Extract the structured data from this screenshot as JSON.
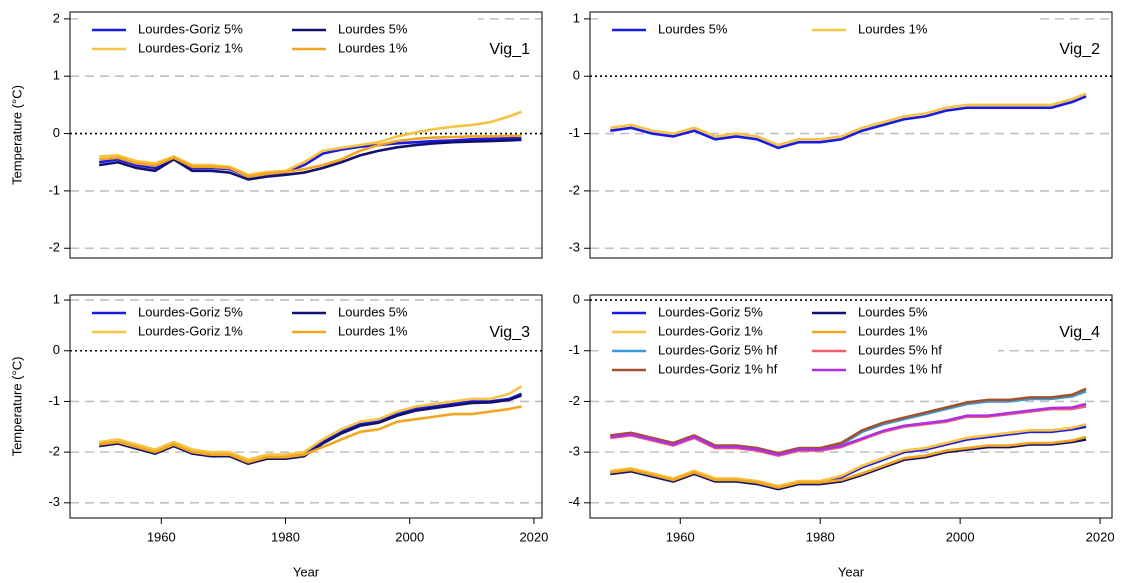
{
  "chart_data": [
    {
      "type": "line",
      "annotation": "Vig_1",
      "ylabel": "Temperature (°C)",
      "x": [
        1950,
        1953,
        1956,
        1959,
        1962,
        1965,
        1968,
        1971,
        1974,
        1977,
        1980,
        1983,
        1986,
        1989,
        1992,
        1995,
        1998,
        2001,
        2004,
        2007,
        2010,
        2013,
        2016,
        2018
      ],
      "xlim": [
        1945.3,
        2021.3
      ],
      "ylim": [
        -2.17,
        2.12
      ],
      "yticks": [
        -2,
        -1,
        0,
        1,
        2
      ],
      "grid": true,
      "hline": 0,
      "legend": "top-left",
      "legend_columns": 2,
      "series": [
        {
          "name": "Lourdes-Goriz 5%",
          "color": "#1a1ae6",
          "values": [
            -0.5,
            -0.45,
            -0.55,
            -0.6,
            -0.42,
            -0.6,
            -0.6,
            -0.62,
            -0.75,
            -0.7,
            -0.68,
            -0.55,
            -0.35,
            -0.28,
            -0.23,
            -0.2,
            -0.17,
            -0.15,
            -0.13,
            -0.12,
            -0.1,
            -0.09,
            -0.08,
            -0.07
          ]
        },
        {
          "name": "Lourdes-Goriz 1%",
          "color": "#f6c445",
          "values": [
            -0.4,
            -0.38,
            -0.48,
            -0.52,
            -0.4,
            -0.55,
            -0.55,
            -0.58,
            -0.72,
            -0.67,
            -0.65,
            -0.5,
            -0.3,
            -0.25,
            -0.2,
            -0.15,
            -0.05,
            0.02,
            0.08,
            0.12,
            0.15,
            0.2,
            0.3,
            0.38
          ]
        },
        {
          "name": "Lourdes 5%",
          "color": "#12126e",
          "values": [
            -0.55,
            -0.5,
            -0.6,
            -0.65,
            -0.45,
            -0.65,
            -0.65,
            -0.68,
            -0.8,
            -0.75,
            -0.72,
            -0.68,
            -0.6,
            -0.5,
            -0.38,
            -0.3,
            -0.24,
            -0.2,
            -0.17,
            -0.15,
            -0.14,
            -0.13,
            -0.12,
            -0.11
          ]
        },
        {
          "name": "Lourdes 1%",
          "color": "#f2a51f",
          "values": [
            -0.45,
            -0.42,
            -0.52,
            -0.56,
            -0.42,
            -0.58,
            -0.58,
            -0.6,
            -0.75,
            -0.7,
            -0.67,
            -0.62,
            -0.55,
            -0.45,
            -0.3,
            -0.2,
            -0.13,
            -0.09,
            -0.07,
            -0.06,
            -0.05,
            -0.05,
            -0.04,
            -0.04
          ]
        }
      ]
    },
    {
      "type": "line",
      "annotation": "Vig_2",
      "x": [
        1950,
        1953,
        1956,
        1959,
        1962,
        1965,
        1968,
        1971,
        1974,
        1977,
        1980,
        1983,
        1986,
        1989,
        1992,
        1995,
        1998,
        2001,
        2004,
        2007,
        2010,
        2013,
        2016,
        2018
      ],
      "xlim": [
        1947.1,
        2021.7
      ],
      "ylim": [
        -3.17,
        1.12
      ],
      "yticks": [
        -3,
        -2,
        -1,
        0,
        1
      ],
      "grid": true,
      "hline": 0,
      "legend": "top-left",
      "legend_columns": 2,
      "series": [
        {
          "name": "Lourdes 5%",
          "color": "#1a1ae6",
          "values": [
            -0.95,
            -0.9,
            -1.0,
            -1.05,
            -0.95,
            -1.1,
            -1.05,
            -1.1,
            -1.25,
            -1.15,
            -1.15,
            -1.1,
            -0.95,
            -0.85,
            -0.75,
            -0.7,
            -0.6,
            -0.55,
            -0.55,
            -0.55,
            -0.55,
            -0.55,
            -0.45,
            -0.35
          ]
        },
        {
          "name": "Lourdes 1%",
          "color": "#f6c445",
          "values": [
            -0.9,
            -0.85,
            -0.95,
            -1.0,
            -0.9,
            -1.05,
            -1.0,
            -1.05,
            -1.2,
            -1.1,
            -1.1,
            -1.05,
            -0.9,
            -0.8,
            -0.7,
            -0.65,
            -0.55,
            -0.5,
            -0.5,
            -0.5,
            -0.5,
            -0.5,
            -0.4,
            -0.3
          ]
        }
      ]
    },
    {
      "type": "line",
      "annotation": "Vig_3",
      "ylabel": "Temperature (°C)",
      "xlabel": "Year",
      "x": [
        1950,
        1953,
        1956,
        1959,
        1962,
        1965,
        1968,
        1971,
        1974,
        1977,
        1980,
        1983,
        1986,
        1989,
        1992,
        1995,
        1998,
        2001,
        2004,
        2007,
        2010,
        2013,
        2016,
        2018
      ],
      "xlim": [
        1945.3,
        2021.3
      ],
      "xticks": [
        1960,
        1980,
        2000,
        2020
      ],
      "ylim": [
        -3.3,
        1.1
      ],
      "yticks": [
        -3,
        -2,
        -1,
        0,
        1
      ],
      "grid": true,
      "hline": 0,
      "legend": "top-left",
      "legend_columns": 2,
      "series": [
        {
          "name": "Lourdes-Goriz 5%",
          "color": "#1a1ae6",
          "values": [
            -1.85,
            -1.8,
            -1.9,
            -2.0,
            -1.85,
            -2.0,
            -2.05,
            -2.05,
            -2.2,
            -2.1,
            -2.1,
            -2.05,
            -1.8,
            -1.6,
            -1.45,
            -1.4,
            -1.25,
            -1.15,
            -1.1,
            -1.05,
            -1.0,
            -1.0,
            -0.95,
            -0.85
          ]
        },
        {
          "name": "Lourdes-Goriz 1%",
          "color": "#f6c445",
          "values": [
            -1.8,
            -1.75,
            -1.85,
            -1.95,
            -1.8,
            -1.95,
            -2.0,
            -2.0,
            -2.15,
            -2.05,
            -2.05,
            -2.0,
            -1.75,
            -1.55,
            -1.4,
            -1.35,
            -1.2,
            -1.1,
            -1.05,
            -1.0,
            -0.95,
            -0.95,
            -0.85,
            -0.7
          ]
        },
        {
          "name": "Lourdes 5%",
          "color": "#12126e",
          "values": [
            -1.88,
            -1.83,
            -1.93,
            -2.03,
            -1.88,
            -2.03,
            -2.08,
            -2.08,
            -2.23,
            -2.13,
            -2.13,
            -2.08,
            -1.83,
            -1.63,
            -1.48,
            -1.42,
            -1.28,
            -1.18,
            -1.13,
            -1.08,
            -1.03,
            -1.02,
            -0.97,
            -0.88
          ]
        },
        {
          "name": "Lourdes 1%",
          "color": "#f2a51f",
          "values": [
            -1.85,
            -1.8,
            -1.9,
            -2.0,
            -1.85,
            -2.0,
            -2.05,
            -2.05,
            -2.2,
            -2.1,
            -2.1,
            -2.05,
            -1.9,
            -1.75,
            -1.6,
            -1.55,
            -1.4,
            -1.35,
            -1.3,
            -1.25,
            -1.25,
            -1.2,
            -1.15,
            -1.1
          ]
        }
      ]
    },
    {
      "type": "line",
      "annotation": "Vig_4",
      "xlabel": "Year",
      "x": [
        1950,
        1953,
        1956,
        1959,
        1962,
        1965,
        1968,
        1971,
        1974,
        1977,
        1980,
        1983,
        1986,
        1989,
        1992,
        1995,
        1998,
        2001,
        2004,
        2007,
        2010,
        2013,
        2016,
        2018
      ],
      "xlim": [
        1947.1,
        2021.7
      ],
      "xticks": [
        1960,
        1980,
        2000,
        2020
      ],
      "ylim": [
        -4.3,
        0.1
      ],
      "yticks": [
        -4,
        -3,
        -2,
        -1,
        0
      ],
      "grid": true,
      "hline": 0,
      "legend": "top-left",
      "legend_columns": 2,
      "series": [
        {
          "name": "Lourdes-Goriz 5%",
          "color": "#1a1ae6",
          "values": [
            -3.4,
            -3.35,
            -3.45,
            -3.55,
            -3.4,
            -3.55,
            -3.55,
            -3.6,
            -3.7,
            -3.6,
            -3.6,
            -3.5,
            -3.3,
            -3.15,
            -3.0,
            -2.95,
            -2.85,
            -2.75,
            -2.7,
            -2.65,
            -2.6,
            -2.6,
            -2.55,
            -2.5
          ]
        },
        {
          "name": "Lourdes-Goriz 1%",
          "color": "#f6c445",
          "values": [
            -3.37,
            -3.32,
            -3.42,
            -3.52,
            -3.37,
            -3.52,
            -3.52,
            -3.57,
            -3.67,
            -3.57,
            -3.57,
            -3.47,
            -3.27,
            -3.12,
            -2.97,
            -2.92,
            -2.82,
            -2.72,
            -2.67,
            -2.62,
            -2.57,
            -2.57,
            -2.52,
            -2.45
          ]
        },
        {
          "name": "Lourdes-Goriz 5% hf",
          "color": "#3a9ad9",
          "values": [
            -2.7,
            -2.65,
            -2.75,
            -2.85,
            -2.7,
            -2.9,
            -2.9,
            -2.95,
            -3.05,
            -2.95,
            -2.95,
            -2.85,
            -2.6,
            -2.45,
            -2.35,
            -2.25,
            -2.15,
            -2.05,
            -2.0,
            -2.0,
            -1.95,
            -1.95,
            -1.9,
            -1.8
          ]
        },
        {
          "name": "Lourdes-Goriz 1% hf",
          "color": "#a0522d",
          "values": [
            -2.67,
            -2.62,
            -2.72,
            -2.82,
            -2.67,
            -2.87,
            -2.87,
            -2.92,
            -3.02,
            -2.92,
            -2.92,
            -2.82,
            -2.57,
            -2.42,
            -2.32,
            -2.22,
            -2.12,
            -2.02,
            -1.97,
            -1.97,
            -1.92,
            -1.92,
            -1.87,
            -1.75
          ]
        },
        {
          "name": "Lourdes 5%",
          "color": "#12126e",
          "values": [
            -3.43,
            -3.38,
            -3.48,
            -3.58,
            -3.43,
            -3.58,
            -3.58,
            -3.63,
            -3.73,
            -3.63,
            -3.63,
            -3.58,
            -3.45,
            -3.3,
            -3.15,
            -3.1,
            -3.0,
            -2.95,
            -2.9,
            -2.9,
            -2.85,
            -2.85,
            -2.8,
            -2.75
          ]
        },
        {
          "name": "Lourdes 1%",
          "color": "#f2a51f",
          "values": [
            -3.4,
            -3.35,
            -3.45,
            -3.55,
            -3.4,
            -3.55,
            -3.55,
            -3.6,
            -3.7,
            -3.6,
            -3.6,
            -3.55,
            -3.42,
            -3.27,
            -3.12,
            -3.07,
            -2.97,
            -2.92,
            -2.87,
            -2.87,
            -2.82,
            -2.82,
            -2.77,
            -2.7
          ]
        },
        {
          "name": "Lourdes 5% hf",
          "color": "#f06070",
          "values": [
            -2.72,
            -2.67,
            -2.77,
            -2.87,
            -2.72,
            -2.92,
            -2.92,
            -2.97,
            -3.07,
            -2.97,
            -2.97,
            -2.9,
            -2.75,
            -2.6,
            -2.5,
            -2.45,
            -2.4,
            -2.3,
            -2.3,
            -2.25,
            -2.2,
            -2.15,
            -2.15,
            -2.1
          ]
        },
        {
          "name": "Lourdes 1% hf",
          "color": "#b030e0",
          "values": [
            -2.7,
            -2.65,
            -2.75,
            -2.85,
            -2.7,
            -2.9,
            -2.9,
            -2.95,
            -3.05,
            -2.95,
            -2.95,
            -2.88,
            -2.73,
            -2.58,
            -2.48,
            -2.43,
            -2.38,
            -2.28,
            -2.28,
            -2.23,
            -2.18,
            -2.13,
            -2.12,
            -2.05
          ]
        }
      ]
    }
  ]
}
